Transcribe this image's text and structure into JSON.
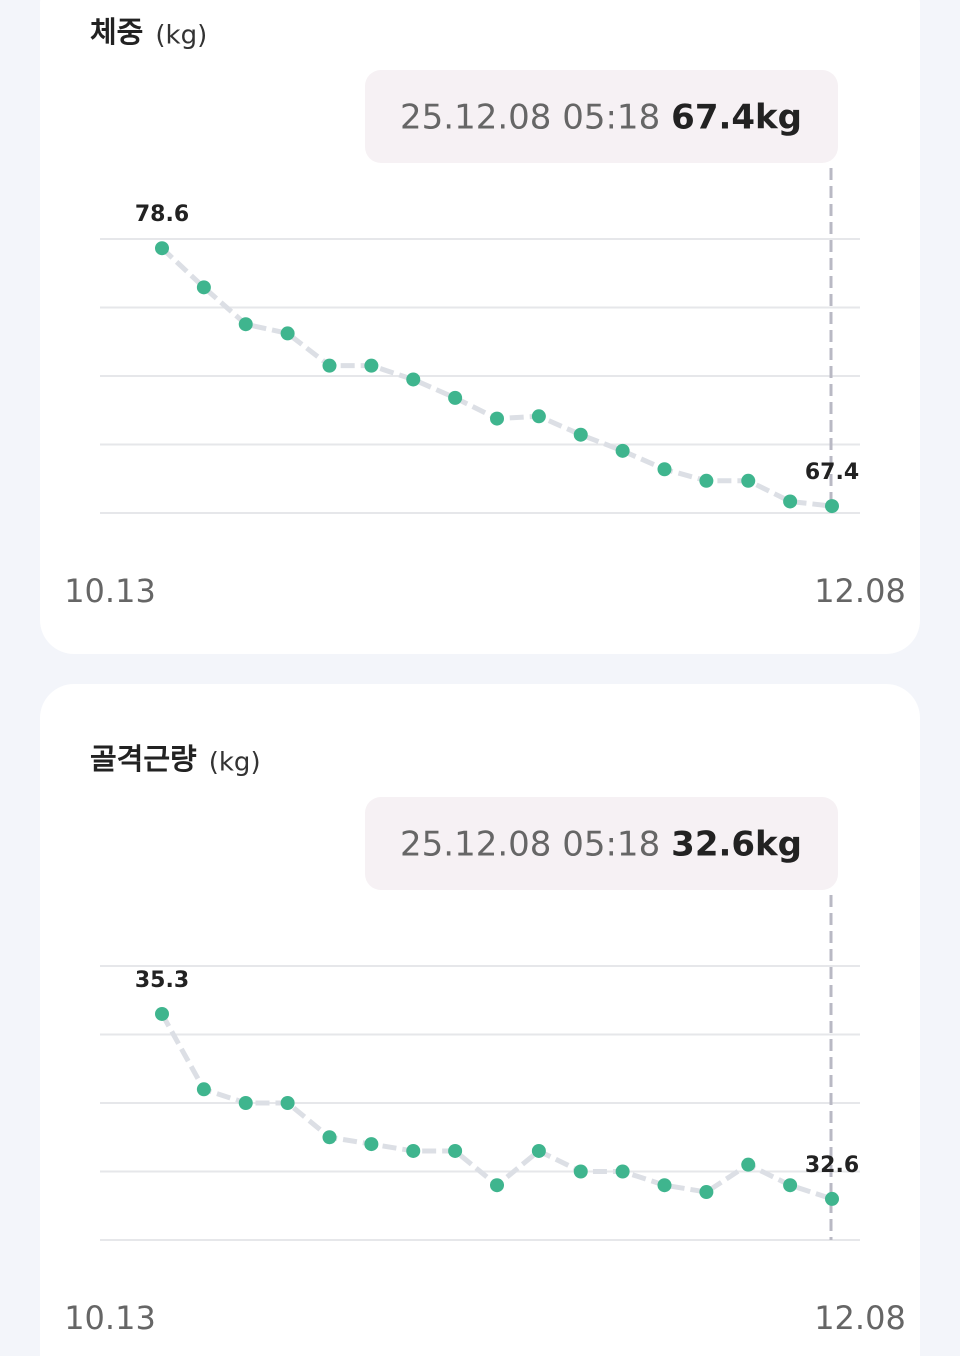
{
  "chart_data": [
    {
      "type": "line",
      "title": "체중",
      "unit": "(kg)",
      "tooltip": {
        "time": "25.12.08 05:18",
        "value_label": "67.4kg"
      },
      "categories": [
        "10.13",
        null,
        null,
        null,
        null,
        null,
        null,
        null,
        null,
        null,
        null,
        null,
        null,
        null,
        null,
        null,
        "12.08"
      ],
      "values": [
        78.6,
        76.9,
        75.3,
        74.9,
        73.5,
        73.5,
        72.9,
        72.1,
        71.2,
        71.3,
        70.5,
        69.8,
        69.0,
        68.5,
        68.5,
        67.6,
        67.4
      ],
      "ylim": [
        67.1,
        79.0
      ],
      "grid": true,
      "color": "#3fb58e",
      "line_color": "#dcdfe5"
    },
    {
      "type": "line",
      "title": "골격근량",
      "unit": "(kg)",
      "tooltip": {
        "time": "25.12.08 05:18",
        "value_label": "32.6kg"
      },
      "categories": [
        "10.13",
        null,
        null,
        null,
        null,
        null,
        null,
        null,
        null,
        null,
        null,
        null,
        null,
        null,
        null,
        null,
        "12.08"
      ],
      "values": [
        35.3,
        34.2,
        34.0,
        34.0,
        33.5,
        33.4,
        33.3,
        33.3,
        32.8,
        33.3,
        33.0,
        33.0,
        32.8,
        32.7,
        33.1,
        32.8,
        32.6
      ],
      "ylim": [
        32.0,
        36.0
      ],
      "grid": true,
      "color": "#3fb58e",
      "line_color": "#dcdfe5"
    }
  ]
}
